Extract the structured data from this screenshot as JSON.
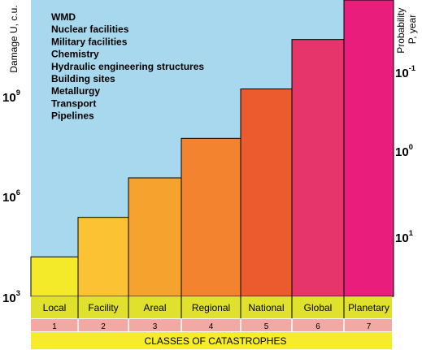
{
  "chart_data": {
    "type": "bar",
    "title": "",
    "ylabel_left": "Damage U, c.u.",
    "ylabel_right": "Probability P, year",
    "left_ticks": [
      {
        "base": "10",
        "exp": "9"
      },
      {
        "base": "10",
        "exp": "6"
      },
      {
        "base": "10",
        "exp": "3"
      }
    ],
    "right_ticks": [
      {
        "base": "10",
        "exp": "-1"
      },
      {
        "base": "10",
        "exp": "0"
      },
      {
        "base": "10",
        "exp": "1"
      }
    ],
    "categories": [
      "Local",
      "Facility",
      "Areal",
      "Regional",
      "National",
      "Global",
      "Planetary"
    ],
    "class_numbers": [
      "1",
      "2",
      "3",
      "4",
      "5",
      "6",
      "7"
    ],
    "xlabel": "CLASSES OF CATASTROPHES",
    "values": [
      5,
      7,
      9,
      11,
      13.5,
      16,
      18
    ],
    "ylim": [
      3,
      18
    ],
    "value_unit_note": "log10 of damage U, c.u.",
    "colors": {
      "background": "#a7d8ee",
      "bars": [
        "#f4ea2a",
        "#fbc234",
        "#f5a22e",
        "#f3832f",
        "#ec5b2d",
        "#e6356b",
        "#e91d7b"
      ],
      "category_band": "#dfe12d",
      "number_band": "#f3a9a3",
      "class_band": "#f7ec2a"
    },
    "annotation_list": [
      "WMD",
      "Nuclear facilities",
      "Military facilities",
      "Chemistry",
      "Hydraulic engineering structures",
      "Building sites",
      "Metallurgy",
      "Transport",
      "Pipelines"
    ]
  }
}
